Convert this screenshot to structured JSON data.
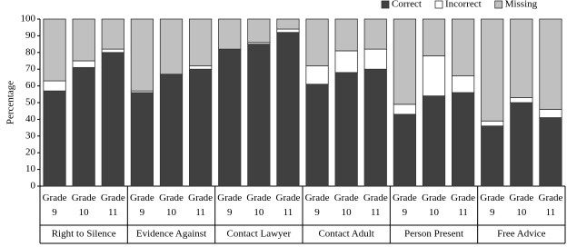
{
  "chart_data": {
    "type": "stacked-bar",
    "y_label": "Percentage",
    "groups": [
      "Right to Silence",
      "Evidence Against",
      "Contact Lawyer",
      "Contact Adult",
      "Person Present",
      "Free Advice"
    ],
    "categories": [
      "Grade 9",
      "Grade 10",
      "Grade 11",
      "Grade 9",
      "Grade 10",
      "Grade 11",
      "Grade 9",
      "Grade 10",
      "Grade 11",
      "Grade 9",
      "Grade 10",
      "Grade 11",
      "Grade 9",
      "Grade 10",
      "Grade 11",
      "Grade 9",
      "Grade 10",
      "Grade 11"
    ],
    "series": [
      {
        "name": "Correct",
        "color": "#404040",
        "values": [
          57,
          71,
          80,
          56,
          67,
          70,
          82,
          85,
          92,
          61,
          68,
          70,
          43,
          54,
          56,
          36,
          50,
          41
        ]
      },
      {
        "name": "Incorrect",
        "color": "#ffffff",
        "values": [
          6,
          4,
          2,
          1,
          0,
          2,
          0,
          1,
          2,
          11,
          13,
          12,
          6,
          24,
          10,
          3,
          3,
          5
        ]
      },
      {
        "name": "Missing",
        "color": "#c0c0c0",
        "values": [
          37,
          25,
          18,
          43,
          33,
          28,
          18,
          14,
          6,
          28,
          19,
          18,
          51,
          22,
          34,
          61,
          47,
          54
        ]
      }
    ],
    "ylim": [
      0,
      100
    ],
    "yticks": [
      0,
      10,
      20,
      30,
      40,
      50,
      60,
      70,
      80,
      90,
      100
    ],
    "legend": "top-right"
  }
}
